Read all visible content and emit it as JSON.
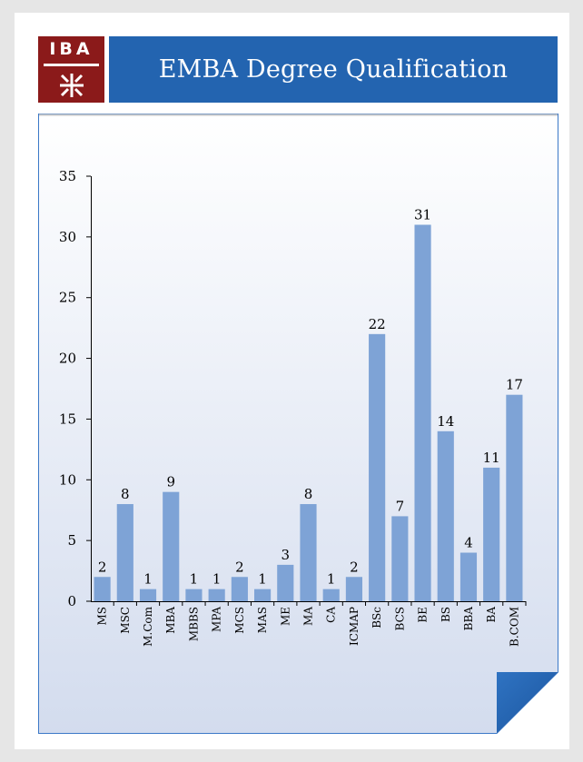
{
  "logo": {
    "text": "IBA",
    "colors": {
      "bg": "#8b1a1a",
      "fg": "#ffffff"
    }
  },
  "header": {
    "title": "EMBA Degree Qualification",
    "color": "#2364b0"
  },
  "colors": {
    "bar": "#7ea3d6",
    "panel_top": "#ffffff",
    "panel_bottom": "#d5def0",
    "border": "#3b78c7",
    "fold": "#2364b0"
  },
  "chart_data": {
    "type": "bar",
    "title": "",
    "xlabel": "",
    "ylabel": "",
    "ylim": [
      0,
      35
    ],
    "yticks": [
      0,
      5,
      10,
      15,
      20,
      25,
      30,
      35
    ],
    "grid": false,
    "categories": [
      "MS",
      "MSC",
      "M.Com",
      "MBA",
      "MBBS",
      "MPA",
      "MCS",
      "MAS",
      "ME",
      "MA",
      "CA",
      "ICMAP",
      "BSc",
      "BCS",
      "BE",
      "BS",
      "BBA",
      "BA",
      "B.COM"
    ],
    "values": [
      2,
      8,
      1,
      9,
      1,
      1,
      2,
      1,
      3,
      8,
      1,
      2,
      22,
      7,
      31,
      14,
      4,
      11,
      17
    ],
    "data_labels": true
  }
}
